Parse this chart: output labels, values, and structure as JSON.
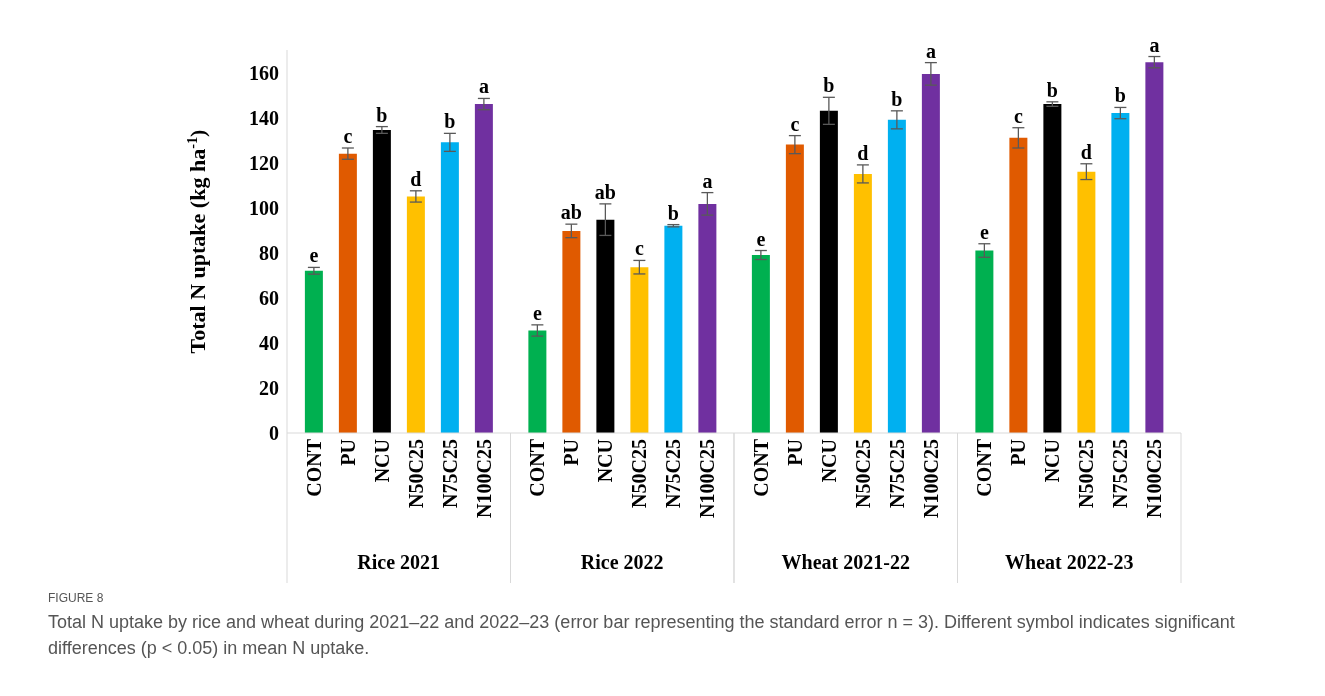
{
  "chart_data": {
    "type": "bar",
    "ylabel": "Total N uptake (kg ha$^{-1}$)",
    "categories": [
      "Rice 2021",
      "Rice 2022",
      "Wheat 2021-22",
      "Wheat 2022-23"
    ],
    "ylim": [
      0,
      170
    ],
    "yticks": [
      0,
      20,
      40,
      60,
      80,
      100,
      120,
      140,
      160
    ],
    "series": [
      {
        "name": "CONT",
        "color": "#00b050",
        "values": [
          72,
          45.5,
          79,
          81
        ],
        "errors": [
          1.5,
          2.5,
          2,
          3
        ],
        "value_labels": [
          "e",
          "e",
          "e",
          "e"
        ]
      },
      {
        "name": "PU",
        "color": "#e05a00",
        "values": [
          124,
          89.7,
          128,
          131
        ],
        "errors": [
          2.5,
          3,
          4,
          4.5
        ],
        "value_labels": [
          "c",
          "ab",
          "c",
          "c"
        ]
      },
      {
        "name": "NCU",
        "color": "#000000",
        "values": [
          134.5,
          94.7,
          143,
          146
        ],
        "errors": [
          1.5,
          7,
          6,
          1
        ],
        "value_labels": [
          "b",
          "ab",
          "b",
          "b"
        ]
      },
      {
        "name": "N50C25",
        "color": "#ffc000",
        "values": [
          105,
          73.6,
          115,
          116
        ],
        "errors": [
          2.5,
          3,
          4,
          3.5
        ],
        "value_labels": [
          "d",
          "c",
          "d",
          "d"
        ]
      },
      {
        "name": "N75C25",
        "color": "#00b0f0",
        "values": [
          129,
          92,
          139,
          142
        ],
        "errors": [
          4,
          0.5,
          4,
          2.5
        ],
        "value_labels": [
          "b",
          "b",
          "b",
          "b"
        ]
      },
      {
        "name": "N100C25",
        "color": "#7030a0",
        "values": [
          146,
          101.7,
          159.4,
          164.6
        ],
        "errors": [
          2.5,
          5,
          5,
          2.5
        ],
        "value_labels": [
          "a",
          "a",
          "a",
          "a"
        ]
      }
    ],
    "annotations": [
      "FIGURE 8",
      "Total N uptake by rice and wheat during 2021–22 and 2022–23 (error bar representing the standard error n = 3). Different symbol indicates significant differences (p < 0.05) in mean N uptake."
    ]
  }
}
